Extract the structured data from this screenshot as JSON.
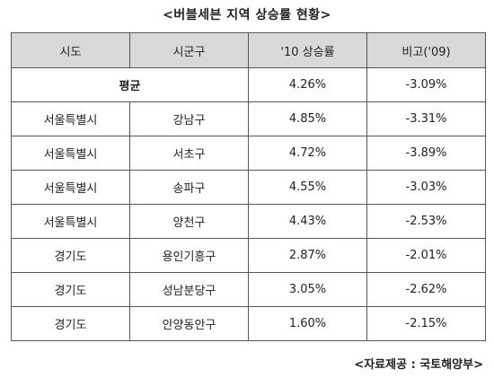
{
  "title": "<버블세븐 지역 상승률 현황>",
  "table": {
    "headers": [
      "시도",
      "시군구",
      "'10 상승률",
      "비고('09)"
    ],
    "average_row": {
      "label": "평균",
      "rate_2010": "4.26%",
      "note_2009": "-3.09%"
    },
    "rows": [
      {
        "sido": "서울특별시",
        "sigungu": "강남구",
        "rate_2010": "4.85%",
        "note_2009": "-3.31%"
      },
      {
        "sido": "서울특별시",
        "sigungu": "서초구",
        "rate_2010": "4.72%",
        "note_2009": "-3.89%"
      },
      {
        "sido": "서울특별시",
        "sigungu": "송파구",
        "rate_2010": "4.55%",
        "note_2009": "-3.03%"
      },
      {
        "sido": "서울특별시",
        "sigungu": "양천구",
        "rate_2010": "4.43%",
        "note_2009": "-2.53%"
      },
      {
        "sido": "경기도",
        "sigungu": "용인기흥구",
        "rate_2010": "2.87%",
        "note_2009": "-2.01%"
      },
      {
        "sido": "경기도",
        "sigungu": "성남분당구",
        "rate_2010": "3.05%",
        "note_2009": "-2.62%"
      },
      {
        "sido": "경기도",
        "sigungu": "안양동안구",
        "rate_2010": "1.60%",
        "note_2009": "-2.15%"
      }
    ]
  },
  "source": "<자료제공 : 국토해양부>"
}
